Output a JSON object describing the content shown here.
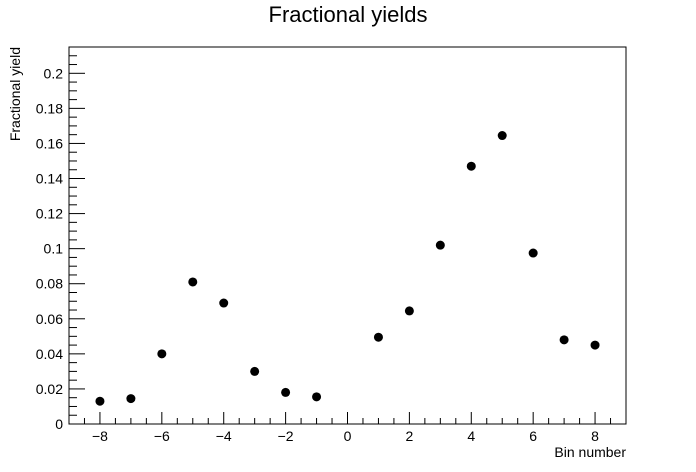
{
  "chart_data": {
    "type": "scatter",
    "title": "Fractional yields",
    "xlabel": "Bin number",
    "ylabel": "Fractional yield",
    "xlim": [
      -9,
      9
    ],
    "ylim": [
      0,
      0.215
    ],
    "grid": false,
    "x_ticks": [
      "−8",
      "−6",
      "−4",
      "−2",
      "0",
      "2",
      "4",
      "6",
      "8"
    ],
    "y_ticks": [
      "0",
      "0.02",
      "0.04",
      "0.06",
      "0.08",
      "0.1",
      "0.12",
      "0.14",
      "0.16",
      "0.18",
      "0.2"
    ],
    "series": [
      {
        "marker_color": "#000000",
        "x": [
          -8,
          -7,
          -6,
          -5,
          -4,
          -3,
          -2,
          -1,
          1,
          2,
          3,
          4,
          5,
          6,
          7,
          8
        ],
        "y": [
          0.013,
          0.0145,
          0.04,
          0.081,
          0.069,
          0.03,
          0.018,
          0.0155,
          0.0495,
          0.0645,
          0.102,
          0.147,
          0.1645,
          0.0975,
          0.048,
          0.045
        ]
      }
    ]
  }
}
